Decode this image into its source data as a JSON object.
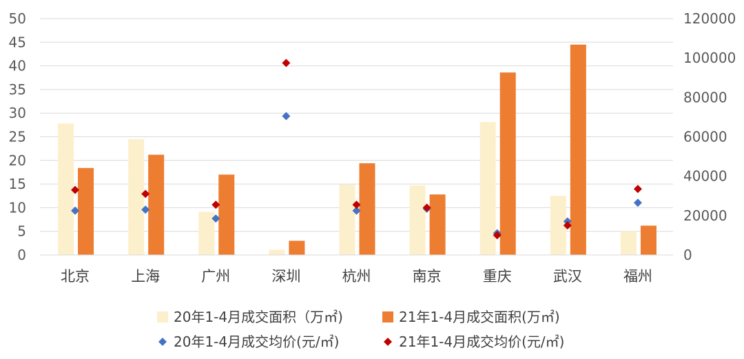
{
  "chart_data": {
    "type": "bar",
    "categories": [
      "北京",
      "上海",
      "广州",
      "深圳",
      "杭州",
      "南京",
      "重庆",
      "武汉",
      "福州"
    ],
    "left_axis": {
      "range": [
        0,
        50
      ],
      "ticks": [
        "0",
        "5",
        "10",
        "15",
        "20",
        "25",
        "30",
        "35",
        "40",
        "45",
        "50"
      ]
    },
    "right_axis": {
      "range": [
        0,
        120000
      ],
      "ticks": [
        "0",
        "20000",
        "40000",
        "60000",
        "80000",
        "100000",
        "120000"
      ]
    },
    "series": [
      {
        "name": "20年1-4月成交面积（万㎡)",
        "type": "bar",
        "axis": "left",
        "color": "#FCEFCB",
        "values": [
          27.8,
          24.5,
          9.1,
          1.1,
          14.9,
          14.7,
          28.1,
          12.5,
          5.0
        ]
      },
      {
        "name": "21年1-4月成交面积(万㎡)",
        "type": "bar",
        "axis": "left",
        "color": "#ED7D31",
        "values": [
          18.4,
          21.2,
          17.0,
          3.0,
          19.4,
          12.8,
          38.6,
          44.5,
          6.2
        ]
      },
      {
        "name": "20年1-4月成交均价(元/㎡)",
        "type": "scatter",
        "axis": "right",
        "color": "#4472C4",
        "values": [
          22500,
          23000,
          18500,
          70500,
          22500,
          23500,
          11000,
          17000,
          26500
        ]
      },
      {
        "name": "21年1-4月成交均价(元/㎡)",
        "type": "scatter",
        "axis": "right",
        "color": "#C00000",
        "values": [
          33000,
          31000,
          25500,
          97500,
          25500,
          24000,
          10000,
          15000,
          33500
        ]
      }
    ],
    "grid": true,
    "legend_position": "bottom"
  }
}
